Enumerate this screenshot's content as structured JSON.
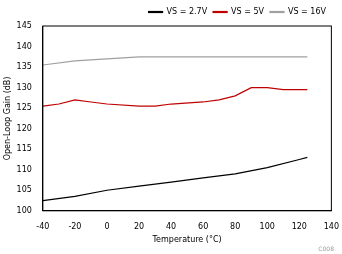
{
  "chart_data": {
    "type": "line",
    "x_label": "Temperature (°C)",
    "y_label": "Open-Loop Gain (dB)",
    "annotations": [
      "C008"
    ],
    "series": [
      {
        "name": "VS = 2.7V",
        "color": "#000000",
        "x": [
          -40,
          -20,
          0,
          20,
          40,
          60,
          80,
          100,
          120,
          125
        ],
        "values": [
          102.5,
          103.5,
          105,
          106,
          107,
          108,
          109,
          110.5,
          112.5,
          113
        ]
      },
      {
        "name": "VS = 5V",
        "color": "#c00000",
        "x": [
          -40,
          -30,
          -20,
          -10,
          0,
          20,
          30,
          40,
          60,
          70,
          80,
          90,
          100,
          110,
          125
        ],
        "values": [
          125.5,
          126,
          127,
          126.5,
          126,
          125.5,
          125.5,
          126,
          126.5,
          127,
          128,
          130,
          130,
          129.5,
          129.5
        ]
      },
      {
        "name": "VS = 16V",
        "color": "#a0a0a0",
        "x": [
          -40,
          -20,
          0,
          20,
          40,
          60,
          80,
          100,
          120,
          125
        ],
        "values": [
          135.5,
          136.5,
          137,
          137.5,
          137.5,
          137.5,
          137.5,
          137.5,
          137.5,
          137.5
        ]
      }
    ],
    "xlim": [
      -40,
      140
    ],
    "xticks": [
      -40,
      -20,
      0,
      20,
      40,
      60,
      80,
      100,
      120,
      140
    ],
    "ylim": [
      100,
      145
    ],
    "yticks": [
      100,
      105,
      110,
      115,
      120,
      125,
      130,
      135,
      140,
      145
    ],
    "grid": false,
    "legend": "upper right"
  }
}
